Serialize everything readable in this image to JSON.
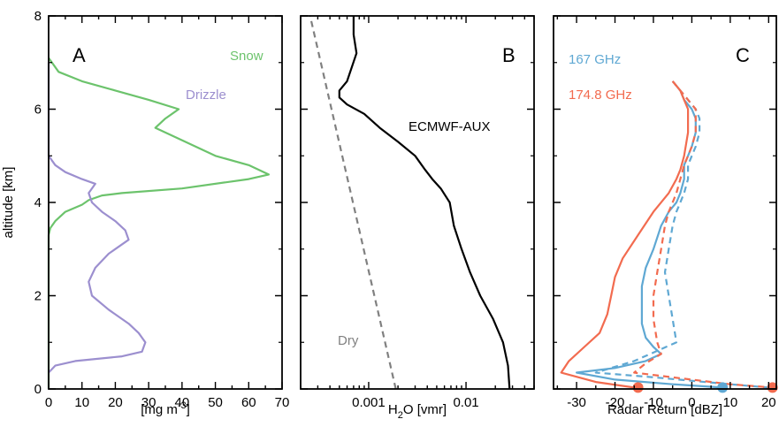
{
  "chart_data": [
    {
      "type": "line",
      "panel_letter": "A",
      "ylabel": "altitude [km]",
      "xlabel": "[mg m⁻³]",
      "xlim": [
        0,
        70
      ],
      "ylim": [
        0,
        8
      ],
      "xticks": [
        "0",
        "10",
        "20",
        "30",
        "40",
        "50",
        "60",
        "70"
      ],
      "yticks": [
        "0",
        "2",
        "4",
        "6",
        "8"
      ],
      "series": [
        {
          "name": "Snow",
          "color": "#6cc36c",
          "x": [
            0,
            0,
            0,
            0.5,
            2,
            5,
            10,
            12,
            16,
            22,
            40,
            60,
            66,
            60,
            50,
            38,
            32,
            35,
            39,
            30,
            20,
            10,
            3,
            0
          ],
          "y": [
            0,
            2,
            3.3,
            3.45,
            3.6,
            3.8,
            3.95,
            4.05,
            4.15,
            4.2,
            4.3,
            4.5,
            4.6,
            4.8,
            5.0,
            5.4,
            5.6,
            5.8,
            6.0,
            6.2,
            6.4,
            6.6,
            6.8,
            7.1
          ]
        },
        {
          "name": "Drizzle",
          "color": "#9c8fcf",
          "x": [
            0,
            2,
            8,
            22,
            28,
            29,
            27,
            24,
            18,
            13,
            12,
            14,
            18,
            24,
            23,
            20,
            16,
            13,
            12,
            14,
            10,
            5,
            2,
            0,
            0
          ],
          "y": [
            0.35,
            0.5,
            0.6,
            0.7,
            0.8,
            1.0,
            1.2,
            1.4,
            1.7,
            2.0,
            2.3,
            2.6,
            2.9,
            3.2,
            3.4,
            3.6,
            3.8,
            4.0,
            4.2,
            4.4,
            4.5,
            4.65,
            4.8,
            5.0,
            7.0
          ]
        }
      ]
    },
    {
      "type": "line",
      "panel_letter": "B",
      "xlabel_main": "H",
      "xlabel_sub": "2",
      "xlabel_rest": "O [vmr]",
      "xscale": "log",
      "xlim": [
        0.0002,
        0.05
      ],
      "ylim": [
        0,
        8
      ],
      "xticks": [
        {
          "value": 0.001,
          "label": "0.001"
        },
        {
          "value": 0.01,
          "label": "0.01"
        }
      ],
      "series": [
        {
          "name": "ECMWF-AUX",
          "color": "#000000",
          "x": [
            0.028,
            0.027,
            0.024,
            0.019,
            0.014,
            0.011,
            0.009,
            0.0075,
            0.0068,
            0.0055,
            0.0045,
            0.0038,
            0.003,
            0.002,
            0.0013,
            0.0009,
            0.0006,
            0.0005,
            0.0005,
            0.0006,
            0.00075,
            0.0007,
            0.0007
          ],
          "y": [
            0,
            0.5,
            1.0,
            1.5,
            2.0,
            2.5,
            3.0,
            3.5,
            4.0,
            4.3,
            4.5,
            4.7,
            5.0,
            5.3,
            5.6,
            5.9,
            6.1,
            6.25,
            6.4,
            6.6,
            7.2,
            7.6,
            8.0
          ]
        },
        {
          "name": "Dry",
          "color": "#808080",
          "dashed": true,
          "x": [
            0.0019,
            0.00025
          ],
          "y": [
            0,
            8
          ]
        }
      ]
    },
    {
      "type": "line",
      "panel_letter": "C",
      "xlabel": "Radar Return [dBZ]",
      "xlim": [
        -36,
        22
      ],
      "ylim": [
        0,
        8
      ],
      "xticks": [
        "-30",
        "-20",
        "-10",
        "0",
        "10",
        "20"
      ],
      "series": [
        {
          "name": "167 GHz",
          "color": "#5fa8d3",
          "x": [
            -5,
            -3,
            -2,
            0,
            1,
            1,
            0,
            -1,
            -2,
            -2,
            -3,
            -4,
            -6,
            -8,
            -10,
            -12,
            -13,
            -13,
            -13,
            -12,
            -10,
            -8,
            -12,
            -20,
            -30,
            -20,
            -5,
            8
          ],
          "y": [
            6.6,
            6.4,
            6.2,
            6.0,
            5.8,
            5.5,
            5.2,
            5.0,
            4.8,
            4.5,
            4.2,
            4.0,
            3.8,
            3.5,
            3.0,
            2.6,
            2.2,
            1.8,
            1.4,
            1.1,
            0.9,
            0.75,
            0.6,
            0.45,
            0.35,
            0.2,
            0.1,
            0.03
          ]
        },
        {
          "name": "167 GHz",
          "color": "#5fa8d3",
          "dashed": true,
          "x": [
            -5,
            -3,
            -1,
            1,
            2,
            2,
            1,
            0,
            -1,
            -1,
            -2,
            -3,
            -4,
            -5,
            -6,
            -7,
            -6,
            -5,
            -4,
            -15,
            -25,
            -10,
            10,
            20
          ],
          "y": [
            6.6,
            6.4,
            6.2,
            6.0,
            5.8,
            5.5,
            5.2,
            5.0,
            4.8,
            4.5,
            4.2,
            4.0,
            3.8,
            3.5,
            3.0,
            2.5,
            2.0,
            1.5,
            1.0,
            0.6,
            0.35,
            0.25,
            0.1,
            0.03
          ]
        },
        {
          "name": "174.8 GHz",
          "color": "#f26b4f",
          "x": [
            -5,
            -3,
            -2,
            -1,
            -1,
            -2,
            -3,
            -4,
            -6,
            -10,
            -14,
            -18,
            -20,
            -21,
            -22,
            -24,
            -28,
            -32,
            -34,
            -25,
            -15
          ],
          "y": [
            6.6,
            6.4,
            6.2,
            6.0,
            5.5,
            5.0,
            4.7,
            4.5,
            4.2,
            3.8,
            3.3,
            2.8,
            2.4,
            2.0,
            1.6,
            1.2,
            0.9,
            0.6,
            0.35,
            0.15,
            0.03
          ]
        },
        {
          "name": "174.8 GHz",
          "color": "#f26b4f",
          "dashed": true,
          "x": [
            -5,
            -3,
            -1,
            1,
            1,
            0,
            -1,
            -2,
            -3,
            -4,
            -5,
            -6,
            -7,
            -8,
            -9,
            -10,
            -10,
            -9,
            -8,
            -12,
            -15,
            -5,
            10,
            21
          ],
          "y": [
            6.6,
            6.4,
            6.2,
            6.0,
            5.5,
            5.2,
            5.0,
            4.8,
            4.5,
            4.2,
            4.0,
            3.8,
            3.5,
            3.0,
            2.5,
            2.0,
            1.5,
            1.0,
            0.75,
            0.55,
            0.35,
            0.25,
            0.1,
            0.03
          ]
        }
      ],
      "markers": [
        {
          "x": -14,
          "y": 0.03,
          "color": "#f26b4f"
        },
        {
          "x": 8,
          "y": 0.03,
          "color": "#5fa8d3"
        },
        {
          "x": 21,
          "y": 0.03,
          "color": "#f26b4f"
        }
      ],
      "legend": [
        {
          "label": "167 GHz",
          "color": "#5fa8d3"
        },
        {
          "label": "174.8 GHz",
          "color": "#f26b4f"
        }
      ]
    }
  ]
}
